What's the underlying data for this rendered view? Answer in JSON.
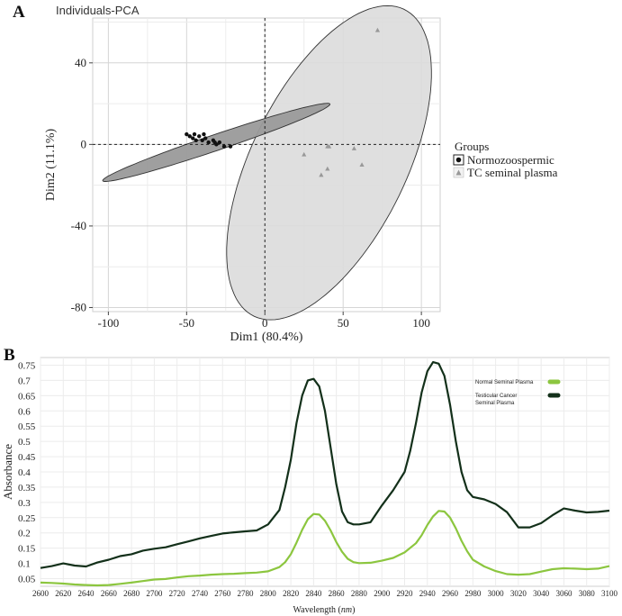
{
  "chart_data": [
    {
      "panel_label": "A",
      "type": "scatter",
      "title": "Individuals-PCA",
      "xlabel": "Dim1 (80.4%)",
      "ylabel": "Dim2 (11.1%)",
      "xlim": [
        -110,
        112
      ],
      "ylim": [
        -82,
        62
      ],
      "xticks": [
        -100,
        -50,
        0,
        50,
        100
      ],
      "yticks": [
        -80,
        -40,
        0,
        40
      ],
      "grid": true,
      "legend_title": "Groups",
      "legend_position": "right",
      "series": [
        {
          "name": "Normozoospermic",
          "marker": "circle",
          "color": "#111111",
          "ellipse_color": "#9a9a9a",
          "points": [
            [
              -50,
              5
            ],
            [
              -48,
              4
            ],
            [
              -46,
              3
            ],
            [
              -45,
              5
            ],
            [
              -44,
              2
            ],
            [
              -42,
              4
            ],
            [
              -40,
              2
            ],
            [
              -39,
              5
            ],
            [
              -38,
              3
            ],
            [
              -36,
              1
            ],
            [
              -33,
              2
            ],
            [
              -32,
              1
            ],
            [
              -31,
              0
            ],
            [
              -29,
              1
            ],
            [
              -26,
              -1
            ],
            [
              -22,
              -1
            ]
          ],
          "ellipse": {
            "cx": -31,
            "cy": 1,
            "rx": 75,
            "ry": 4,
            "angle_deg": 14.5
          }
        },
        {
          "name": "TC seminal plasma",
          "marker": "triangle",
          "color": "#999999",
          "ellipse_color": "#dcdcdc",
          "points": [
            [
              25,
              -5
            ],
            [
              36,
              -15
            ],
            [
              40,
              -1
            ],
            [
              41,
              -1
            ],
            [
              40,
              -12
            ],
            [
              57,
              -2
            ],
            [
              62,
              -10
            ],
            [
              72,
              56
            ]
          ],
          "ellipse": {
            "cx": 41,
            "cy": -9,
            "rx": 90,
            "ry": 46,
            "angle_deg": 53
          }
        }
      ]
    },
    {
      "panel_label": "B",
      "type": "line",
      "xlabel": "Wavelength",
      "xlabel_unit": "nm",
      "ylabel": "Absorbance",
      "xlim": [
        2600,
        3100
      ],
      "ylim": [
        0.025,
        0.775
      ],
      "xticks": [
        2600,
        2620,
        2640,
        2660,
        2680,
        2700,
        2720,
        2740,
        2760,
        2780,
        2800,
        2820,
        2840,
        2860,
        2880,
        2900,
        2920,
        2940,
        2960,
        2980,
        3000,
        3020,
        3040,
        3060,
        3080,
        3100
      ],
      "yticks": [
        0.05,
        0.1,
        0.15,
        0.2,
        0.25,
        0.3,
        0.35,
        0.4,
        0.45,
        0.5,
        0.55,
        0.6,
        0.65,
        0.7,
        0.75
      ],
      "grid": true,
      "legend_position": "top-right",
      "series": [
        {
          "name": "Normal Seminal Plasma",
          "color": "#8cc63f",
          "x": [
            2600,
            2610,
            2620,
            2630,
            2640,
            2650,
            2660,
            2670,
            2680,
            2690,
            2700,
            2710,
            2720,
            2730,
            2740,
            2750,
            2760,
            2770,
            2780,
            2790,
            2800,
            2810,
            2815,
            2820,
            2825,
            2830,
            2835,
            2840,
            2845,
            2850,
            2855,
            2860,
            2865,
            2870,
            2875,
            2880,
            2890,
            2900,
            2910,
            2920,
            2930,
            2935,
            2940,
            2945,
            2950,
            2955,
            2960,
            2965,
            2970,
            2975,
            2980,
            2990,
            3000,
            3010,
            3020,
            3030,
            3040,
            3050,
            3060,
            3070,
            3080,
            3090,
            3100
          ],
          "y": [
            0.037,
            0.036,
            0.034,
            0.031,
            0.029,
            0.028,
            0.029,
            0.033,
            0.037,
            0.042,
            0.047,
            0.049,
            0.054,
            0.058,
            0.06,
            0.063,
            0.065,
            0.066,
            0.068,
            0.07,
            0.074,
            0.088,
            0.104,
            0.13,
            0.168,
            0.21,
            0.245,
            0.262,
            0.26,
            0.24,
            0.208,
            0.17,
            0.138,
            0.115,
            0.104,
            0.101,
            0.102,
            0.109,
            0.118,
            0.136,
            0.166,
            0.192,
            0.226,
            0.254,
            0.272,
            0.27,
            0.25,
            0.215,
            0.174,
            0.14,
            0.112,
            0.09,
            0.075,
            0.065,
            0.063,
            0.065,
            0.073,
            0.081,
            0.084,
            0.083,
            0.081,
            0.083,
            0.091
          ]
        },
        {
          "name": "Testicular Cancer Seminal Plasma",
          "color": "#13301a",
          "x": [
            2600,
            2610,
            2620,
            2630,
            2640,
            2650,
            2660,
            2670,
            2680,
            2690,
            2700,
            2710,
            2720,
            2730,
            2740,
            2750,
            2760,
            2770,
            2780,
            2790,
            2800,
            2810,
            2815,
            2820,
            2825,
            2830,
            2835,
            2840,
            2845,
            2850,
            2855,
            2860,
            2865,
            2870,
            2875,
            2880,
            2890,
            2900,
            2910,
            2920,
            2925,
            2930,
            2935,
            2940,
            2945,
            2950,
            2955,
            2960,
            2965,
            2970,
            2975,
            2980,
            2990,
            3000,
            3010,
            3020,
            3030,
            3040,
            3050,
            3060,
            3070,
            3080,
            3090,
            3100
          ],
          "y": [
            0.085,
            0.091,
            0.1,
            0.093,
            0.09,
            0.103,
            0.112,
            0.124,
            0.13,
            0.142,
            0.148,
            0.153,
            0.163,
            0.172,
            0.182,
            0.19,
            0.198,
            0.202,
            0.205,
            0.208,
            0.228,
            0.275,
            0.35,
            0.44,
            0.56,
            0.65,
            0.7,
            0.705,
            0.68,
            0.6,
            0.48,
            0.36,
            0.27,
            0.235,
            0.228,
            0.228,
            0.235,
            0.29,
            0.34,
            0.4,
            0.47,
            0.56,
            0.66,
            0.73,
            0.76,
            0.755,
            0.715,
            0.62,
            0.5,
            0.4,
            0.34,
            0.318,
            0.31,
            0.295,
            0.268,
            0.218,
            0.218,
            0.232,
            0.258,
            0.28,
            0.273,
            0.267,
            0.269,
            0.273
          ]
        }
      ]
    }
  ]
}
